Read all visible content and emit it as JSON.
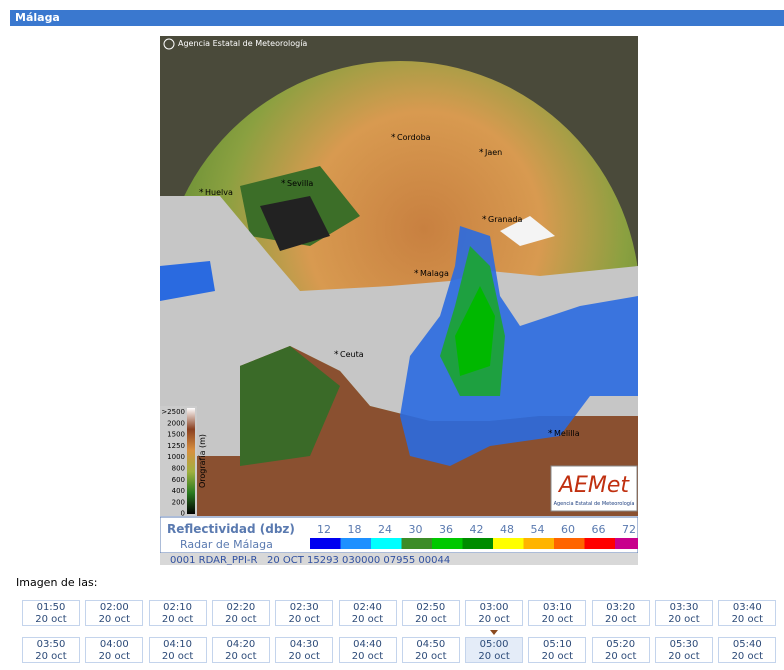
{
  "header": {
    "title": "Málaga"
  },
  "image": {
    "credit": "Agencia Estatal de Meteorología",
    "cities": [
      {
        "label": "Cordoba"
      },
      {
        "label": "Jaen"
      },
      {
        "label": "Huelva"
      },
      {
        "label": "Sevilla"
      },
      {
        "label": "Granada"
      },
      {
        "label": "Malaga"
      },
      {
        "label": "Ceuta"
      },
      {
        "label": "Melilla"
      }
    ],
    "orography": {
      "title": "Orografía (m)",
      "levels": [
        ">2500",
        "2000",
        "1500",
        "1250",
        "1000",
        "800",
        "600",
        "400",
        "200",
        "0"
      ]
    },
    "logo": {
      "name": "AEMet",
      "subtitle": "Agencia Estatal de Meteorología"
    },
    "legend": {
      "title": "Reflectividad (dbz)",
      "subtitle": "Radar de Málaga",
      "items": [
        {
          "label": "12",
          "color": "#0000f0"
        },
        {
          "label": "18",
          "color": "#1e90ff"
        },
        {
          "label": "24",
          "color": "#00ffff"
        },
        {
          "label": "30",
          "color": "#3c8c28"
        },
        {
          "label": "36",
          "color": "#00c800"
        },
        {
          "label": "42",
          "color": "#008c00"
        },
        {
          "label": "48",
          "color": "#ffff00"
        },
        {
          "label": "54",
          "color": "#ffb400"
        },
        {
          "label": "60",
          "color": "#ff6400"
        },
        {
          "label": "66",
          "color": "#ff0000"
        },
        {
          "label": "72",
          "color": "#c8008c"
        }
      ]
    },
    "status": "0001 RDAR_PPI-R   20 OCT 15293 030000 07955 00044"
  },
  "times_label": "Imagen de las:",
  "times": [
    {
      "time": "01:50",
      "date": "20 oct"
    },
    {
      "time": "02:00",
      "date": "20 oct"
    },
    {
      "time": "02:10",
      "date": "20 oct"
    },
    {
      "time": "02:20",
      "date": "20 oct"
    },
    {
      "time": "02:30",
      "date": "20 oct"
    },
    {
      "time": "02:40",
      "date": "20 oct"
    },
    {
      "time": "02:50",
      "date": "20 oct"
    },
    {
      "time": "03:00",
      "date": "20 oct"
    },
    {
      "time": "03:10",
      "date": "20 oct"
    },
    {
      "time": "03:20",
      "date": "20 oct"
    },
    {
      "time": "03:30",
      "date": "20 oct"
    },
    {
      "time": "03:40",
      "date": "20 oct"
    },
    {
      "time": "03:50",
      "date": "20 oct"
    },
    {
      "time": "04:00",
      "date": "20 oct"
    },
    {
      "time": "04:10",
      "date": "20 oct"
    },
    {
      "time": "04:20",
      "date": "20 oct"
    },
    {
      "time": "04:30",
      "date": "20 oct"
    },
    {
      "time": "04:40",
      "date": "20 oct"
    },
    {
      "time": "04:50",
      "date": "20 oct"
    },
    {
      "time": "05:00",
      "date": "20 oct",
      "selected": true
    },
    {
      "time": "05:10",
      "date": "20 oct"
    },
    {
      "time": "05:20",
      "date": "20 oct"
    },
    {
      "time": "05:30",
      "date": "20 oct"
    },
    {
      "time": "05:40",
      "date": "20 oct"
    }
  ]
}
